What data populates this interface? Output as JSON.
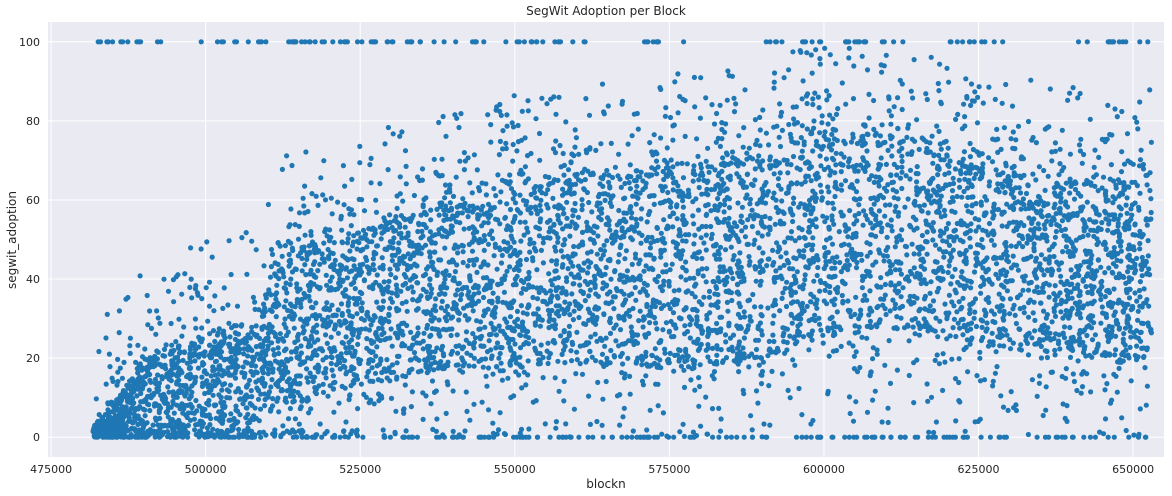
{
  "chart_data": {
    "type": "scatter",
    "title": "SegWit Adoption per Block",
    "xlabel": "blockn",
    "ylabel": "segwit_adoption",
    "xlim": [
      474500,
      655000
    ],
    "ylim": [
      -5,
      105
    ],
    "xticks": [
      475000,
      500000,
      525000,
      550000,
      575000,
      600000,
      625000,
      650000
    ],
    "xtick_labels": [
      "475000",
      "500000",
      "525000",
      "550000",
      "575000",
      "600000",
      "625000",
      "650000"
    ],
    "yticks": [
      0,
      20,
      40,
      60,
      80,
      100
    ],
    "ytick_labels": [
      "0",
      "20",
      "40",
      "60",
      "80",
      "100"
    ],
    "grid": true,
    "background": "#eaeaf2",
    "point_color": "#1f77b4",
    "x_range_of_data": [
      481800,
      653000
    ],
    "band_profile": [
      {
        "x": 482000,
        "low": 0,
        "high": 3
      },
      {
        "x": 486000,
        "low": 0,
        "high": 10
      },
      {
        "x": 490000,
        "low": 0,
        "high": 20
      },
      {
        "x": 495000,
        "low": 0,
        "high": 22
      },
      {
        "x": 500000,
        "low": 0,
        "high": 25
      },
      {
        "x": 505000,
        "low": 1,
        "high": 26
      },
      {
        "x": 509000,
        "low": 3,
        "high": 28
      },
      {
        "x": 511000,
        "low": 8,
        "high": 45
      },
      {
        "x": 520000,
        "low": 12,
        "high": 50
      },
      {
        "x": 530000,
        "low": 15,
        "high": 54
      },
      {
        "x": 540000,
        "low": 18,
        "high": 58
      },
      {
        "x": 550000,
        "low": 18,
        "high": 62
      },
      {
        "x": 560000,
        "low": 20,
        "high": 65
      },
      {
        "x": 570000,
        "low": 18,
        "high": 66
      },
      {
        "x": 580000,
        "low": 18,
        "high": 68
      },
      {
        "x": 590000,
        "low": 20,
        "high": 70
      },
      {
        "x": 595000,
        "low": 25,
        "high": 75
      },
      {
        "x": 600000,
        "low": 28,
        "high": 78
      },
      {
        "x": 610000,
        "low": 28,
        "high": 76
      },
      {
        "x": 620000,
        "low": 25,
        "high": 70
      },
      {
        "x": 630000,
        "low": 24,
        "high": 66
      },
      {
        "x": 640000,
        "low": 22,
        "high": 64
      },
      {
        "x": 653000,
        "low": 20,
        "high": 63
      }
    ],
    "outlier_spread": 25,
    "flat_rows": [
      {
        "y": 0,
        "ranges": [
          [
            482000,
            653000
          ]
        ]
      },
      {
        "y": 100,
        "ranges": [
          [
            482000,
            494000
          ],
          [
            496000,
            545000
          ],
          [
            548000,
            562000
          ],
          [
            570000,
            578000
          ],
          [
            590000,
            600000
          ],
          [
            602000,
            616000
          ],
          [
            620000,
            630000
          ],
          [
            640000,
            653000
          ]
        ]
      }
    ]
  }
}
